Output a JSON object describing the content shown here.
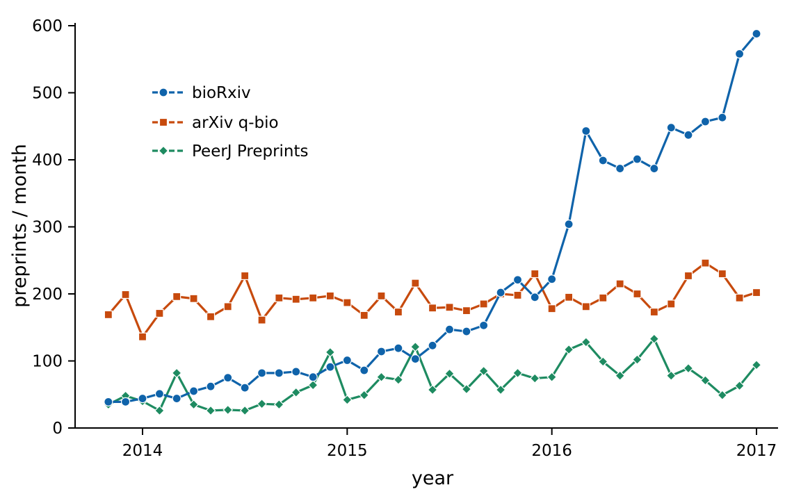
{
  "chart_data": {
    "type": "line",
    "title": "",
    "xlabel": "year",
    "ylabel": "preprints / month",
    "xlim": [
      2013.75,
      2017.1
    ],
    "ylim": [
      0,
      600
    ],
    "xticks": [
      2014,
      2015,
      2016,
      2017
    ],
    "xtick_labels": [
      "2014",
      "2015",
      "2016",
      "2017"
    ],
    "yticks": [
      0,
      100,
      200,
      300,
      400,
      500,
      600
    ],
    "ytick_labels": [
      "0",
      "100",
      "200",
      "300",
      "400",
      "500",
      "600"
    ],
    "grid": false,
    "legend_position": "top-left",
    "x": [
      2013.833,
      2013.917,
      2014.0,
      2014.083,
      2014.167,
      2014.25,
      2014.333,
      2014.417,
      2014.5,
      2014.583,
      2014.667,
      2014.75,
      2014.833,
      2014.917,
      2015.0,
      2015.083,
      2015.167,
      2015.25,
      2015.333,
      2015.417,
      2015.5,
      2015.583,
      2015.667,
      2015.75,
      2015.833,
      2015.917,
      2016.0,
      2016.083,
      2016.167,
      2016.25,
      2016.333,
      2016.417,
      2016.5,
      2016.583,
      2016.667,
      2016.75,
      2016.833,
      2016.917,
      2017.0
    ],
    "series": [
      {
        "name": "bioRxiv",
        "color": "#0f63aa",
        "marker": "circle",
        "values": [
          39,
          39,
          44,
          51,
          44,
          55,
          62,
          75,
          60,
          82,
          82,
          84,
          76,
          91,
          101,
          86,
          114,
          119,
          103,
          123,
          147,
          144,
          153,
          202,
          221,
          195,
          222,
          304,
          443,
          399,
          387,
          401,
          387,
          448,
          437,
          457,
          463,
          558,
          588
        ]
      },
      {
        "name": "arXiv q-bio",
        "color": "#c74a0d",
        "marker": "square",
        "values": [
          169,
          199,
          136,
          171,
          196,
          193,
          166,
          181,
          227,
          161,
          194,
          192,
          194,
          197,
          187,
          168,
          197,
          173,
          216,
          179,
          180,
          175,
          185,
          200,
          198,
          230,
          178,
          195,
          181,
          194,
          215,
          200,
          173,
          185,
          227,
          246,
          230,
          194,
          202
        ]
      },
      {
        "name": "PeerJ Preprints",
        "color": "#1e8b61",
        "marker": "diamond",
        "values": [
          35,
          48,
          40,
          26,
          82,
          35,
          26,
          27,
          26,
          36,
          35,
          53,
          64,
          113,
          42,
          49,
          76,
          72,
          121,
          57,
          81,
          58,
          85,
          57,
          82,
          74,
          76,
          117,
          128,
          99,
          78,
          102,
          133,
          78,
          89,
          71,
          49,
          63,
          94
        ]
      }
    ]
  }
}
